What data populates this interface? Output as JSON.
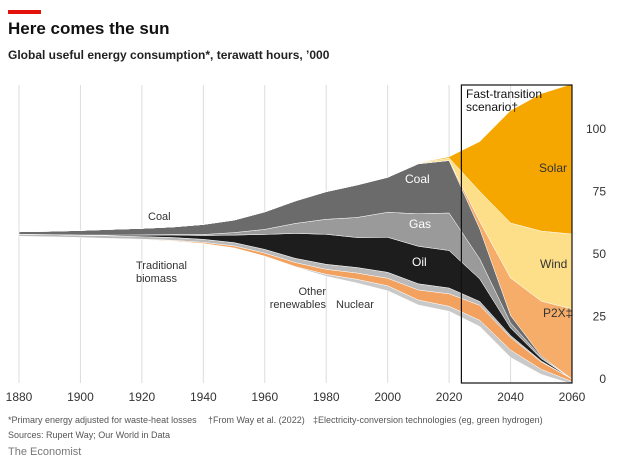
{
  "title": "Here comes the sun",
  "subtitle": "Global useful energy consumption*, terawatt hours, ’000",
  "chart_data": {
    "type": "stream",
    "x": [
      1880,
      1890,
      1900,
      1910,
      1920,
      1930,
      1940,
      1950,
      1960,
      1970,
      1980,
      1990,
      2000,
      2010,
      2020,
      2030,
      2040,
      2050,
      2060
    ],
    "series": [
      {
        "name": "Nuclear",
        "color": "#c9c9c9",
        "values": [
          0,
          0,
          0,
          0,
          0,
          0,
          0,
          0,
          0,
          0.2,
          0.8,
          1.5,
          2,
          2,
          2,
          2.5,
          3,
          2,
          1
        ]
      },
      {
        "name": "Other renewables",
        "color": "#f2a25e",
        "values": [
          0,
          0,
          0,
          0.1,
          0.2,
          0.3,
          0.5,
          0.8,
          1.2,
          1.6,
          2,
          2.5,
          3,
          4,
          5,
          6,
          5,
          3,
          1
        ]
      },
      {
        "name": "Traditional biomass",
        "color": "#b9b9b9",
        "values": [
          0.8,
          0.85,
          0.9,
          1,
          1,
          1.1,
          1.2,
          1.3,
          1.5,
          1.7,
          2,
          2.2,
          2.4,
          2.5,
          2.3,
          1.5,
          0.8,
          0.3,
          0
        ]
      },
      {
        "name": "Oil",
        "color": "#1d1d1d",
        "values": [
          0,
          0,
          0.1,
          0.3,
          0.6,
          1,
          1.5,
          3,
          6,
          10,
          12,
          12,
          14,
          15,
          15,
          9,
          3,
          1,
          0
        ]
      },
      {
        "name": "Gas",
        "color": "#9a9a9a",
        "values": [
          0,
          0,
          0,
          0,
          0.1,
          0.2,
          0.4,
          1,
          2,
          4,
          6,
          8,
          10,
          13,
          15,
          8,
          2,
          0.5,
          0
        ]
      },
      {
        "name": "Coal",
        "color": "#6b6b6b",
        "values": [
          1,
          1.3,
          1.8,
          2.3,
          2.6,
          3,
          4,
          5,
          7,
          9,
          11,
          13,
          14,
          20,
          21,
          12,
          3,
          0.5,
          0
        ]
      },
      {
        "name": "P2X‡",
        "color": "#f6ad6a",
        "values": [
          0,
          0,
          0,
          0,
          0,
          0,
          0,
          0,
          0,
          0,
          0,
          0,
          0,
          0,
          0,
          3,
          15,
          22,
          28
        ]
      },
      {
        "name": "Wind",
        "color": "#fddf8a",
        "values": [
          0,
          0,
          0,
          0,
          0,
          0,
          0,
          0,
          0,
          0,
          0,
          0,
          0,
          0.2,
          1,
          12,
          22,
          28,
          30
        ]
      },
      {
        "name": "Solar",
        "color": "#f5a700",
        "values": [
          0,
          0,
          0,
          0,
          0,
          0,
          0,
          0,
          0,
          0,
          0,
          0,
          0,
          0.1,
          0.5,
          20,
          45,
          55,
          60
        ]
      }
    ],
    "xlim": [
      1880,
      2060
    ],
    "xticks": [
      1880,
      1900,
      1920,
      1940,
      1960,
      1980,
      2000,
      2020,
      2040,
      2060
    ],
    "ylim": [
      0,
      120
    ],
    "yticks": [
      0,
      25,
      50,
      75,
      100
    ],
    "grid": true,
    "scenario_start": 2024,
    "scenario_label": "Fast-transition scenario†"
  },
  "footnotes": [
    "*Primary energy adjusted for waste-heat losses",
    "†From Way et al. (2022)",
    "‡Electricity-conversion technologies (eg, green hydrogen)"
  ],
  "sources": "Sources: Rupert Way; Our World in Data",
  "brand": "The Economist"
}
